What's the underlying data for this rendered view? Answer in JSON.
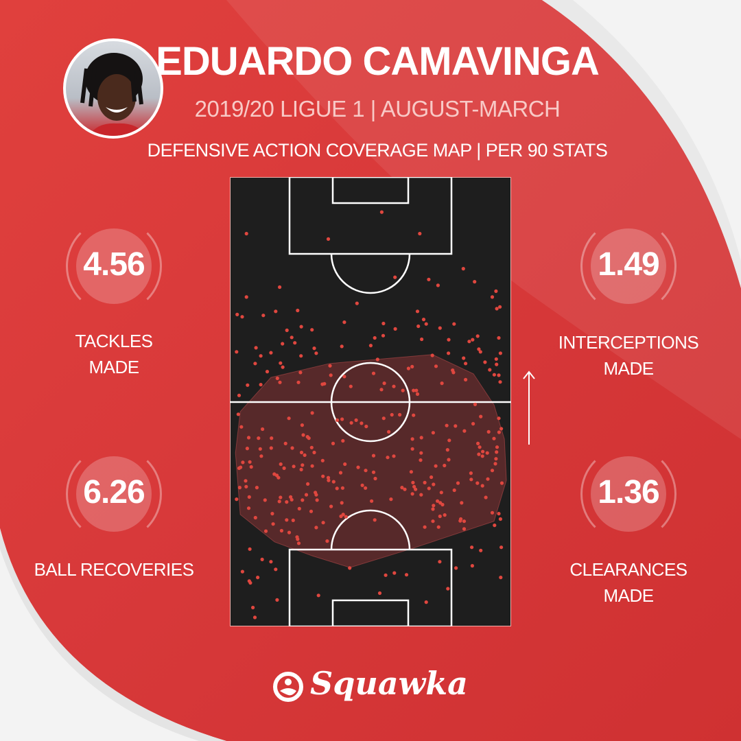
{
  "header": {
    "title": "EDUARDO CAMAVINGA",
    "subtitle": "2019/20 LIGUE 1 | AUGUST-MARCH",
    "map_title": "DEFENSIVE ACTION COVERAGE MAP | PER 90 STATS"
  },
  "stats": {
    "tackles": {
      "value": "4.56",
      "label1": "TACKLES",
      "label2": "MADE"
    },
    "interceptions": {
      "value": "1.49",
      "label1": "INTERCEPTIONS",
      "label2": "MADE"
    },
    "recoveries": {
      "value": "6.26",
      "label1": "BALL RECOVERIES"
    },
    "clearances": {
      "value": "1.36",
      "label1": "CLEARANCES",
      "label2": "MADE"
    }
  },
  "brand": {
    "name": "Squawka"
  },
  "colors": {
    "background": "#d8393a",
    "pitch": "#1e1e1e",
    "point": "#e0473f",
    "hull": "#a8393b"
  },
  "icons": {
    "attack_direction": "arrow-up-icon",
    "logo": "squawka-logo-icon"
  },
  "chart_data": {
    "type": "scatter",
    "description_units": "pitch position, x 0-100 across width, y 0-100 along length (0 = opponent goal at top)",
    "attack_direction": "up",
    "convex_hull": [
      [
        3.7,
        52.2
      ],
      [
        14.6,
        44.6
      ],
      [
        35.4,
        41.5
      ],
      [
        72,
        39.5
      ],
      [
        86.6,
        43.8
      ],
      [
        93.9,
        50.7
      ],
      [
        97.6,
        58.3
      ],
      [
        98.3,
        67.5
      ],
      [
        93.9,
        76.6
      ],
      [
        64.6,
        82.7
      ],
      [
        42.7,
        86.9
      ],
      [
        29.3,
        84.3
      ],
      [
        15.9,
        81.2
      ],
      [
        3.7,
        75.1
      ],
      [
        2,
        61.4
      ]
    ],
    "points": [
      [
        54,
        7.8
      ],
      [
        5.9,
        12.6
      ],
      [
        35,
        13.8
      ],
      [
        67.5,
        12.6
      ],
      [
        83,
        20.4
      ],
      [
        58.7,
        22.3
      ],
      [
        70.7,
        22.8
      ],
      [
        74,
        24.1
      ],
      [
        87,
        23.3
      ],
      [
        17.7,
        24.5
      ],
      [
        5.9,
        26.7
      ],
      [
        94.6,
        25.4
      ],
      [
        93.3,
        26.7
      ],
      [
        45.2,
        28.1
      ],
      [
        94.9,
        29.3
      ],
      [
        96,
        28.9
      ],
      [
        2.6,
        30.6
      ],
      [
        4.4,
        31.1
      ],
      [
        11.9,
        30.8
      ],
      [
        16.3,
        29.9
      ],
      [
        24.1,
        29.7
      ],
      [
        66.7,
        29.9
      ],
      [
        68.9,
        31.7
      ],
      [
        69.8,
        32.7
      ],
      [
        40.7,
        32.3
      ],
      [
        54.6,
        32.6
      ],
      [
        25.4,
        33.3
      ],
      [
        20.3,
        34.1
      ],
      [
        29.2,
        34
      ],
      [
        58.8,
        33.8
      ],
      [
        67,
        33.2
      ],
      [
        74.7,
        33.6
      ],
      [
        79.7,
        32.7
      ],
      [
        22,
        35.7
      ],
      [
        23.1,
        36.9
      ],
      [
        18.7,
        37.1
      ],
      [
        51.5,
        35.8
      ],
      [
        54.5,
        35.3
      ],
      [
        68.2,
        36.1
      ],
      [
        77.8,
        36.2
      ],
      [
        88.1,
        35.4
      ],
      [
        86.3,
        36.2
      ],
      [
        85.1,
        36.6
      ],
      [
        95.6,
        35.8
      ],
      [
        9.3,
        38
      ],
      [
        2.4,
        38.9
      ],
      [
        11,
        39.8
      ],
      [
        14.6,
        39.1
      ],
      [
        30,
        38.1
      ],
      [
        30.7,
        39.2
      ],
      [
        39.8,
        37.7
      ],
      [
        50.1,
        37.5
      ],
      [
        25.3,
        39.8
      ],
      [
        72,
        39.7
      ],
      [
        77.7,
        39.2
      ],
      [
        88.5,
        38.3
      ],
      [
        89.1,
        38.9
      ],
      [
        96.2,
        39.2
      ],
      [
        9,
        41.5
      ],
      [
        18,
        41.4
      ],
      [
        18.8,
        42.3
      ],
      [
        35.6,
        42
      ],
      [
        52.5,
        40.6
      ],
      [
        83.1,
        40.3
      ],
      [
        83.8,
        41.5
      ],
      [
        90.7,
        41.2
      ],
      [
        94.7,
        40.5
      ],
      [
        94.8,
        41.7
      ],
      [
        13.3,
        43.3
      ],
      [
        25.1,
        43.5
      ],
      [
        35.9,
        44.1
      ],
      [
        40.7,
        44.4
      ],
      [
        51.1,
        43.7
      ],
      [
        63.5,
        42.6
      ],
      [
        64.8,
        42.2
      ],
      [
        73.3,
        42.1
      ],
      [
        79.2,
        43
      ],
      [
        79.5,
        43.5
      ],
      [
        92.4,
        42.9
      ],
      [
        94,
        44
      ],
      [
        95.6,
        44.1
      ],
      [
        16.9,
        44.8
      ],
      [
        17.8,
        45.7
      ],
      [
        24.4,
        45.7
      ],
      [
        6.3,
        46.3
      ],
      [
        11,
        46.2
      ],
      [
        32.9,
        46.1
      ],
      [
        33.6,
        46
      ],
      [
        43,
        46.6
      ],
      [
        54.9,
        45.9
      ],
      [
        58.3,
        46.6
      ],
      [
        53.9,
        47.3
      ],
      [
        61.5,
        47.5
      ],
      [
        65.3,
        47.5
      ],
      [
        66.3,
        47.5
      ],
      [
        66.7,
        48.3
      ],
      [
        75.4,
        45.9
      ],
      [
        83.8,
        45.1
      ],
      [
        96.1,
        45.6
      ],
      [
        3.3,
        48.6
      ],
      [
        3,
        52.8
      ],
      [
        87.2,
        50.6
      ],
      [
        21,
        53.7
      ],
      [
        29.3,
        52.5
      ],
      [
        38.2,
        54.1
      ],
      [
        39.9,
        53.9
      ],
      [
        43.2,
        54.7
      ],
      [
        44.9,
        54.1
      ],
      [
        46.8,
        54.8
      ],
      [
        48.5,
        55.5
      ],
      [
        54.7,
        53.7
      ],
      [
        57.6,
        52.9
      ],
      [
        60.4,
        52.9
      ],
      [
        65.3,
        53
      ],
      [
        89.2,
        53.3
      ],
      [
        95.6,
        53.7
      ],
      [
        4.1,
        55.6
      ],
      [
        11.6,
        56.1
      ],
      [
        25.7,
        55.2
      ],
      [
        56.5,
        56.7
      ],
      [
        77.1,
        55.3
      ],
      [
        80.2,
        55.4
      ],
      [
        83.4,
        56.5
      ],
      [
        86.5,
        54.9
      ],
      [
        92,
        56.7
      ],
      [
        95.7,
        56.8
      ],
      [
        96.5,
        56
      ],
      [
        6.7,
        58
      ],
      [
        10.2,
        58.1
      ],
      [
        14.8,
        58.1
      ],
      [
        26.1,
        57.4
      ],
      [
        27.6,
        57.8
      ],
      [
        28.1,
        58.1
      ],
      [
        40.2,
        58.7
      ],
      [
        36.7,
        59.3
      ],
      [
        19.8,
        59.3
      ],
      [
        64.9,
        58.3
      ],
      [
        68.1,
        58
      ],
      [
        72.3,
        56.9
      ],
      [
        78,
        58.6
      ],
      [
        93.9,
        58.2
      ],
      [
        6.2,
        60.4
      ],
      [
        10.8,
        60.5
      ],
      [
        14.7,
        60.3
      ],
      [
        22.2,
        60.3
      ],
      [
        29.1,
        60.2
      ],
      [
        30,
        61.3
      ],
      [
        25.5,
        61.3
      ],
      [
        26.6,
        61.9
      ],
      [
        11.2,
        62.1
      ],
      [
        51.1,
        62
      ],
      [
        56.1,
        62.4
      ],
      [
        58.3,
        62.1
      ],
      [
        64.9,
        60.5
      ],
      [
        68,
        61.4
      ],
      [
        67.8,
        63
      ],
      [
        77.4,
        60.7
      ],
      [
        77.8,
        62.9
      ],
      [
        88.2,
        59.3
      ],
      [
        88.8,
        60.1
      ],
      [
        89.9,
        61.1
      ],
      [
        91.5,
        61.4
      ],
      [
        88.5,
        61.7
      ],
      [
        89.8,
        62.1
      ],
      [
        95,
        60.1
      ],
      [
        94.8,
        61.2
      ],
      [
        94.6,
        62.7
      ],
      [
        94.4,
        63.8
      ],
      [
        4.6,
        63.5
      ],
      [
        7.1,
        63.4
      ],
      [
        7.6,
        64.5
      ],
      [
        3.3,
        64.8
      ],
      [
        3.8,
        64.6
      ],
      [
        18.1,
        63.9
      ],
      [
        19.3,
        64.8
      ],
      [
        22.7,
        64.4
      ],
      [
        25.8,
        64.1
      ],
      [
        25.4,
        65.1
      ],
      [
        29.3,
        64.3
      ],
      [
        33,
        63.1
      ],
      [
        40.9,
        63.9
      ],
      [
        45.6,
        64.6
      ],
      [
        48.3,
        65.3
      ],
      [
        51.1,
        65.7
      ],
      [
        39.4,
        65.8
      ],
      [
        73.2,
        64.3
      ],
      [
        76.3,
        64.2
      ],
      [
        64.5,
        65.6
      ],
      [
        93.3,
        65.3
      ],
      [
        15.8,
        66.1
      ],
      [
        16.7,
        66.4
      ],
      [
        17.3,
        66.9
      ],
      [
        33.1,
        66.6
      ],
      [
        35,
        66.9
      ],
      [
        35.1,
        67.5
      ],
      [
        36.9,
        67.8
      ],
      [
        51.7,
        67.1
      ],
      [
        85.7,
        65.9
      ],
      [
        85.8,
        67.3
      ],
      [
        91.7,
        67.2
      ],
      [
        96.7,
        68.1
      ],
      [
        71.6,
        66.8
      ],
      [
        72.4,
        68.4
      ],
      [
        69.3,
        68
      ],
      [
        65.1,
        68
      ],
      [
        81.1,
        68.1
      ],
      [
        88,
        68.1
      ],
      [
        89.8,
        68.7
      ],
      [
        5.6,
        67.6
      ],
      [
        3.5,
        69.1
      ],
      [
        5.8,
        68.9
      ],
      [
        9.6,
        69.1
      ],
      [
        27.7,
        68.3
      ],
      [
        38.1,
        69.3
      ],
      [
        40.1,
        69.2
      ],
      [
        47.1,
        68.6
      ],
      [
        48.2,
        69.2
      ],
      [
        61.2,
        69.1
      ],
      [
        62.2,
        69.5
      ],
      [
        65.5,
        68.9
      ],
      [
        66,
        69.5
      ],
      [
        70.8,
        69.3
      ],
      [
        75.2,
        70.2
      ],
      [
        79.8,
        69.7
      ],
      [
        2.4,
        71.7
      ],
      [
        6.9,
        71.2
      ],
      [
        12.5,
        71.9
      ],
      [
        17.6,
        72.2
      ],
      [
        18,
        71.3
      ],
      [
        20.2,
        72.3
      ],
      [
        21.6,
        71.2
      ],
      [
        22,
        71.8
      ],
      [
        25.8,
        71.9
      ],
      [
        27.2,
        70.7
      ],
      [
        30.4,
        70.2
      ],
      [
        30.7,
        70.7
      ],
      [
        31,
        71.9
      ],
      [
        39.8,
        72.5
      ],
      [
        50.4,
        72.1
      ],
      [
        57.3,
        71.7
      ],
      [
        64.9,
        70.5
      ],
      [
        68,
        70.7
      ],
      [
        73.8,
        72.1
      ],
      [
        74.8,
        72.5
      ],
      [
        75.6,
        72.9
      ],
      [
        72.4,
        73.1
      ],
      [
        72.2,
        73.9
      ],
      [
        82.4,
        72.5
      ],
      [
        91,
        71.3
      ],
      [
        6.7,
        73.7
      ],
      [
        24.7,
        73.8
      ],
      [
        36,
        73.3
      ],
      [
        28.9,
        74.4
      ],
      [
        15.1,
        74.9
      ],
      [
        9.1,
        75.8
      ],
      [
        20.2,
        76.3
      ],
      [
        22.5,
        76.4
      ],
      [
        15.4,
        77.2
      ],
      [
        33.2,
        76.9
      ],
      [
        39.5,
        75.5
      ],
      [
        40.3,
        75.1
      ],
      [
        41.3,
        75.6
      ],
      [
        51.5,
        76.3
      ],
      [
        74.7,
        75.5
      ],
      [
        76.4,
        75.2
      ],
      [
        72.2,
        76.6
      ],
      [
        82.1,
        76.1
      ],
      [
        81.9,
        76.5
      ],
      [
        83.3,
        76.6
      ],
      [
        93.3,
        74.7
      ],
      [
        95.6,
        74.9
      ],
      [
        96.2,
        76.1
      ],
      [
        94.1,
        77.5
      ],
      [
        12.8,
        78.8
      ],
      [
        18.4,
        78.7
      ],
      [
        21.1,
        79.1
      ],
      [
        30.7,
        78
      ],
      [
        69.3,
        77.9
      ],
      [
        74.2,
        77.9
      ],
      [
        83.3,
        78.3
      ],
      [
        23.9,
        80.1
      ],
      [
        24.1,
        80.6
      ],
      [
        24.5,
        81.5
      ],
      [
        34.6,
        81
      ],
      [
        7.1,
        82.8
      ],
      [
        86,
        82.4
      ],
      [
        89.2,
        83.1
      ],
      [
        96.5,
        82.4
      ],
      [
        11.5,
        85.1
      ],
      [
        14.6,
        85.6
      ],
      [
        16.3,
        87.3
      ],
      [
        4.5,
        87.8
      ],
      [
        9.9,
        89.1
      ],
      [
        6.9,
        89.9
      ],
      [
        7.3,
        90.3
      ],
      [
        42.6,
        87
      ],
      [
        55.4,
        88.6
      ],
      [
        58.5,
        88.1
      ],
      [
        62.8,
        88.5
      ],
      [
        74.6,
        85.6
      ],
      [
        80.4,
        87
      ],
      [
        86.2,
        86.5
      ],
      [
        96.3,
        89.1
      ],
      [
        31.5,
        93.1
      ],
      [
        53.3,
        92.6
      ],
      [
        77.5,
        91.6
      ],
      [
        69.8,
        94.6
      ],
      [
        16.8,
        94.1
      ],
      [
        8.2,
        95.8
      ],
      [
        8.9,
        98
      ]
    ]
  }
}
